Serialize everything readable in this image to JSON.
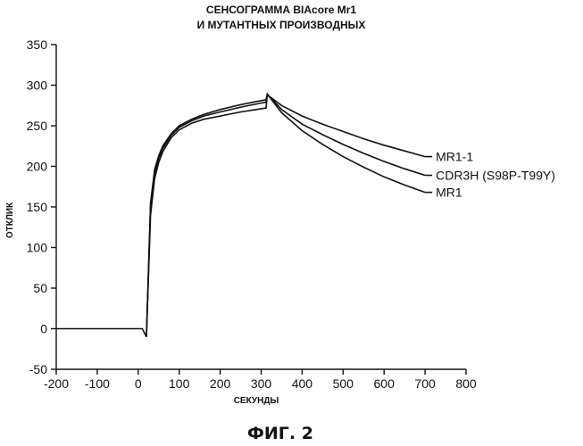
{
  "chart_data": {
    "type": "line",
    "title": [
      "СЕНСОГРАММА BIAcore Mr1",
      "И МУТАНТНЫХ ПРОИЗВОДНЫХ"
    ],
    "xlabel": "СЕКУНДЫ",
    "ylabel": "ОТКЛИК",
    "xlim": [
      -200,
      800
    ],
    "ylim": [
      -50,
      350
    ],
    "xticks": [
      -200,
      -100,
      0,
      100,
      200,
      300,
      400,
      500,
      600,
      700,
      800
    ],
    "yticks": [
      -50,
      0,
      50,
      100,
      150,
      200,
      250,
      300,
      350
    ],
    "grid": false,
    "baseline": {
      "x": [
        -200,
        10,
        20
      ],
      "y": [
        0,
        0,
        -10
      ]
    },
    "association_x": [
      20,
      30,
      40,
      50,
      60,
      80,
      100,
      130,
      160,
      200,
      250,
      300,
      312
    ],
    "series": [
      {
        "name": "MR1-1",
        "association_y": [
          -10,
          140,
          185,
          205,
          218,
          235,
          245,
          253,
          258,
          262,
          267,
          271,
          272
        ],
        "dissociation": {
          "x": [
            312,
            315,
            350,
            400,
            450,
            500,
            550,
            600,
            650,
            700
          ],
          "y": [
            272,
            288,
            275,
            262,
            252,
            243,
            234,
            226,
            219,
            212
          ]
        }
      },
      {
        "name": "CDR3H (S98P-T99Y)",
        "association_y": [
          -10,
          150,
          192,
          210,
          222,
          238,
          248,
          256,
          262,
          267,
          273,
          278,
          279
        ],
        "dissociation": {
          "x": [
            312,
            315,
            350,
            400,
            450,
            500,
            550,
            600,
            650,
            700
          ],
          "y": [
            279,
            289,
            270,
            252,
            239,
            227,
            216,
            206,
            197,
            189
          ]
        }
      },
      {
        "name": "MR1",
        "association_y": [
          -10,
          155,
          196,
          213,
          225,
          240,
          250,
          258,
          264,
          270,
          276,
          281,
          282
        ],
        "dissociation": {
          "x": [
            312,
            315,
            350,
            400,
            450,
            500,
            550,
            600,
            650,
            700
          ],
          "y": [
            282,
            289,
            266,
            244,
            227,
            212,
            199,
            187,
            177,
            168
          ]
        }
      }
    ]
  },
  "figure_label": "ФИГ. 2"
}
